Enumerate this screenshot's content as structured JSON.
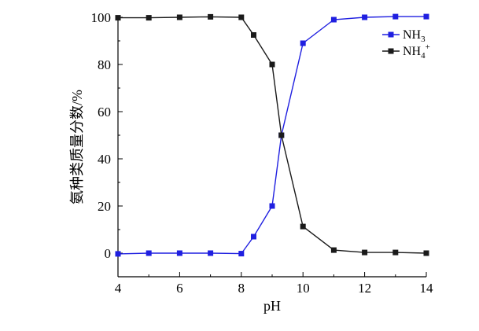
{
  "chart_data": {
    "type": "line",
    "xlabel": "pH",
    "ylabel": "氨种类质量分数/%",
    "xlim": [
      4,
      14
    ],
    "ylim": [
      -10,
      100
    ],
    "xticks": [
      4,
      6,
      8,
      10,
      12,
      14
    ],
    "yticks": [
      0,
      20,
      40,
      60,
      80,
      100
    ],
    "grid": false,
    "legend_position": "top-right",
    "series": [
      {
        "name": "NH3",
        "label_base": "NH",
        "label_sub": "3",
        "label_sup": "",
        "color": "#1f1fe0",
        "marker": "square",
        "x": [
          4,
          5,
          6,
          7,
          8,
          8.4,
          9,
          9.3,
          10,
          11,
          12,
          13,
          14
        ],
        "y": [
          -0.3,
          0,
          0,
          0,
          -0.2,
          7,
          20,
          50,
          89,
          99,
          100,
          100.3,
          100.3
        ]
      },
      {
        "name": "NH4+",
        "label_base": "NH",
        "label_sub": "4",
        "label_sup": "+",
        "color": "#1a1a1a",
        "marker": "square",
        "x": [
          4,
          5,
          6,
          7,
          8,
          8.4,
          9,
          9.3,
          10,
          11,
          12,
          13,
          14
        ],
        "y": [
          99.8,
          99.8,
          100,
          100.2,
          100,
          92.5,
          80,
          50,
          11.3,
          1.3,
          0.3,
          0.3,
          0
        ]
      }
    ]
  }
}
